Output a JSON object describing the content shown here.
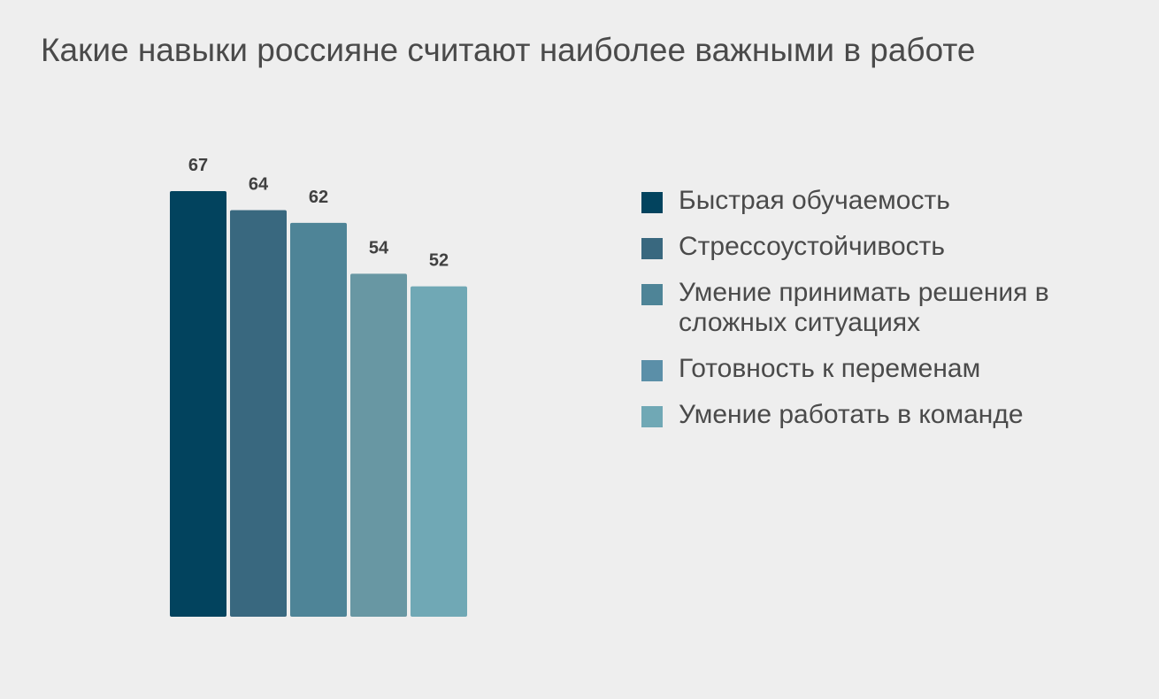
{
  "chart_data": {
    "type": "bar",
    "title": "Какие навыки россияне считают наиболее важными в работе",
    "categories": [
      "Быстрая обучаемость",
      "Стрессоустойчивость",
      "Умение принимать решения в сложных ситуациях",
      "Готовность к переменам",
      "Умение работать в команде"
    ],
    "values": [
      67,
      64,
      62,
      54,
      52
    ],
    "colors": [
      "#02435e",
      "#39687f",
      "#4e8497",
      "#6897a3",
      "#70a8b5"
    ],
    "legend_swatch_colors": [
      "#02435e",
      "#39687f",
      "#4e8497",
      "#5b8fa8",
      "#70a8b5"
    ],
    "legend_position": "right",
    "data_labels": true,
    "grid": false,
    "ylim": [
      0,
      67
    ]
  }
}
